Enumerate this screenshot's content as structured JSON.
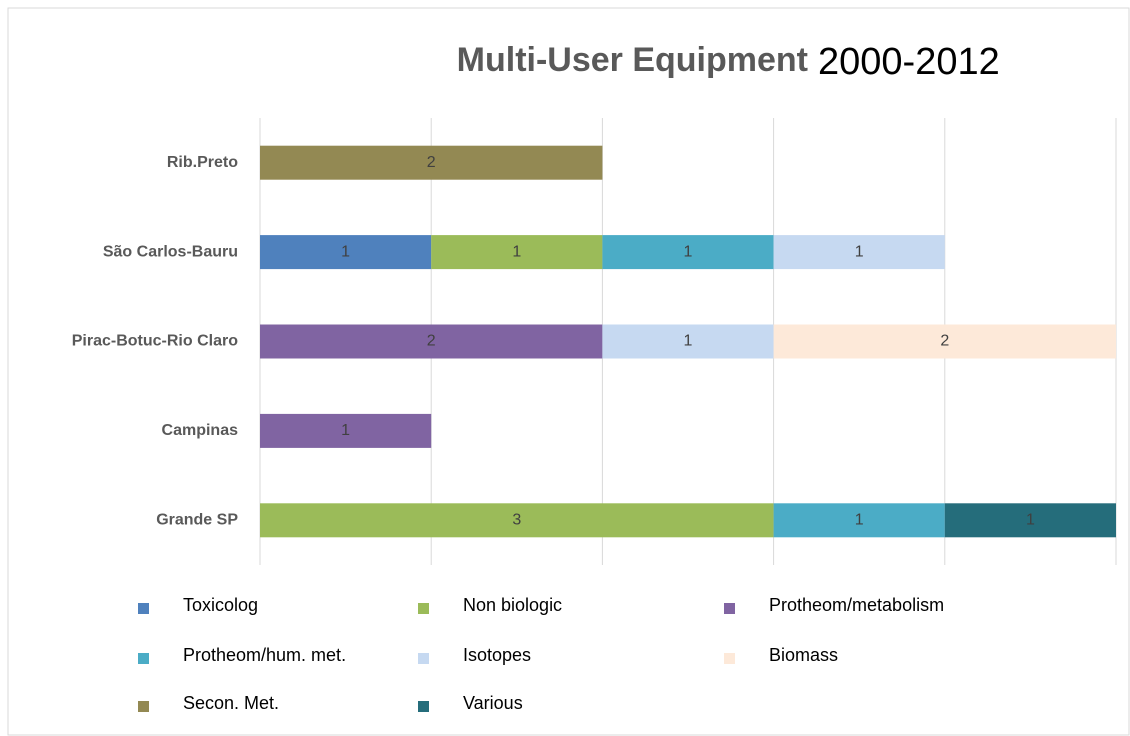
{
  "chart_data": {
    "type": "stacked_bar_horizontal",
    "title": "Multi-User Equipment",
    "subtitle": "2000-2012",
    "categories": [
      "Rib.Preto",
      "São Carlos-Bauru",
      "Pirac-Botuc-Rio Claro",
      "Campinas",
      "Grande SP"
    ],
    "series": [
      {
        "name": "Toxicolog",
        "color": "#4f81bd",
        "values": [
          null,
          1,
          null,
          null,
          null
        ]
      },
      {
        "name": "Non biologic",
        "color": "#9bbb59",
        "values": [
          null,
          1,
          null,
          null,
          3
        ]
      },
      {
        "name": "Protheom/metabolism",
        "color": "#8064a2",
        "values": [
          null,
          null,
          2,
          1,
          null
        ]
      },
      {
        "name": "Protheom/hum. met.",
        "color": "#4bacc6",
        "values": [
          null,
          1,
          null,
          null,
          1
        ]
      },
      {
        "name": "Isotopes",
        "color": "#c6d9f1",
        "values": [
          null,
          1,
          1,
          null,
          null
        ]
      },
      {
        "name": "Biomass",
        "color": "#fde9d9",
        "values": [
          null,
          null,
          2,
          null,
          null
        ]
      },
      {
        "name": "Secon. Met.",
        "color": "#938953",
        "values": [
          2,
          null,
          null,
          null,
          null
        ]
      },
      {
        "name": "Various",
        "color": "#256d7b",
        "values": [
          null,
          null,
          null,
          null,
          1
        ]
      }
    ],
    "xlim": [
      0,
      5
    ],
    "xticks": [
      0,
      1,
      2,
      3,
      4,
      5
    ],
    "grid": true,
    "legend": "bottom"
  }
}
